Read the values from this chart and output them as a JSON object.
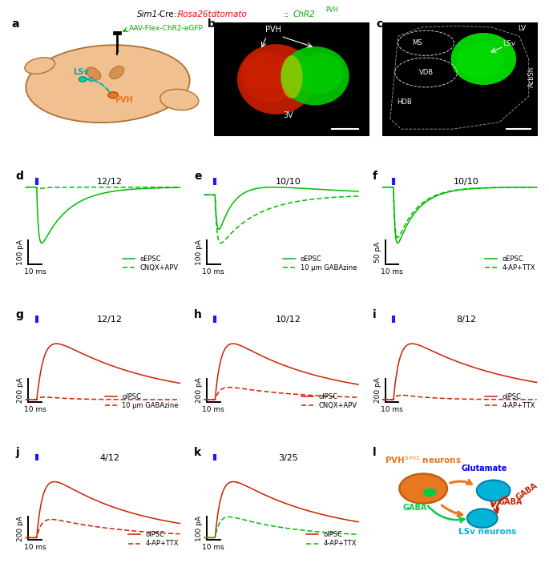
{
  "green_color": "#00bb00",
  "red_color": "#cc2200",
  "blue_stim_color": "#1a1aff",
  "orange_color": "#e87722",
  "cyan_color": "#00b4d8",
  "ratio_labels": {
    "d": "12/12",
    "e": "10/10",
    "f": "10/10",
    "g": "12/12",
    "h": "10/12",
    "i": "8/12",
    "j": "4/12",
    "k": "3/25"
  }
}
